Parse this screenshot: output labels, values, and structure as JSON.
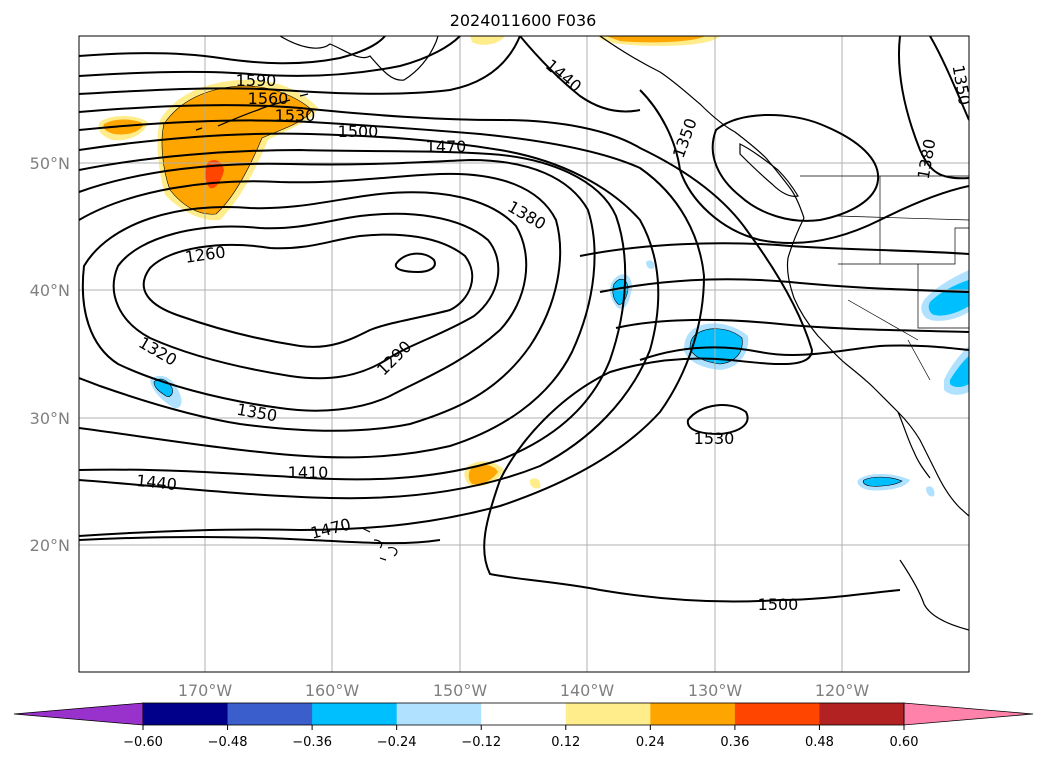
{
  "title": "2024011600 F036",
  "lat_labels": [
    "20°N",
    "30°N",
    "40°N",
    "50°N"
  ],
  "lon_labels": [
    "170°W",
    "160°W",
    "150°W",
    "140°W",
    "130°W",
    "120°W"
  ],
  "contour_labels": {
    "c1590": "1590",
    "c1560": "1560",
    "c1530a": "1530",
    "c1500a": "1500",
    "c1470a": "1470",
    "c1440a": "1440",
    "c1350a": "1350",
    "c1380a": "1380",
    "c1350b": "1350",
    "c1380b": "1380",
    "c1260": "1260",
    "c1320": "1320",
    "c1290": "1290",
    "c1350c": "1350",
    "c1410": "1410",
    "c1440b": "1440",
    "c1470b": "1470",
    "c1530b": "1530",
    "c1500b": "1500"
  },
  "colorbar": {
    "ticks": [
      "−0.60",
      "−0.48",
      "−0.36",
      "−0.24",
      "−0.12",
      "0.12",
      "0.24",
      "0.36",
      "0.48",
      "0.60"
    ],
    "colors": [
      "#9932cc",
      "#00008b",
      "#3a5fcd",
      "#00bfff",
      "#b0e2ff",
      "#ffffff",
      "#ffec8b",
      "#ffa500",
      "#ff4500",
      "#b22222",
      "#ff82ab"
    ]
  },
  "shading_colors": {
    "pos_light": "#ffec8b",
    "pos_mid": "#ffa500",
    "pos_strong": "#ff4500",
    "neg_light": "#b0e2ff",
    "neg_mid": "#00bfff"
  }
}
